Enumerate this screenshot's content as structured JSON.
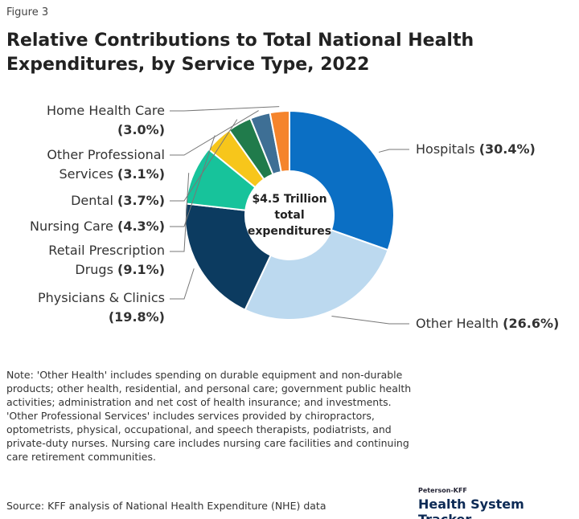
{
  "figure_label": "Figure 3",
  "chart_data": {
    "type": "pie",
    "title": "Relative Contributions to Total National Health Expenditures, by Service Type, 2022",
    "center_label": "$4.5 Trillion total expenditures",
    "categories": [
      "Hospitals",
      "Other Health",
      "Physicians & Clinics",
      "Retail Prescription Drugs",
      "Nursing Care",
      "Dental",
      "Other Professional Services",
      "Home Health Care"
    ],
    "values": [
      30.4,
      26.6,
      19.8,
      9.1,
      4.3,
      3.7,
      3.1,
      3.0
    ],
    "value_labels": [
      "(30.4%)",
      "(26.6%)",
      "(19.8%)",
      "(9.1%)",
      "(4.3%)",
      "(3.7%)",
      "(3.1%)",
      "(3.0%)"
    ],
    "colors": [
      "#0b6fc4",
      "#bcd9ef",
      "#0c3b60",
      "#17c39b",
      "#f7c61b",
      "#207b4b",
      "#3e6f95",
      "#f5842c"
    ]
  },
  "note": "Note: 'Other Health' includes spending on durable equipment and non-durable products; other health, residential, and personal care; government public health activities; administration and net cost of health insurance; and investments. 'Other Professional Services' includes services provided by chiropractors, optometrists, physical, occupational, and speech therapists, podiatrists, and private-duty nurses. Nursing care includes nursing care facilities and continuing care retirement communities.",
  "source": "Source: KFF analysis of National Health Expenditure (NHE) data",
  "brand": {
    "top": "Peterson-KFF",
    "name": "Health System Tracker"
  }
}
